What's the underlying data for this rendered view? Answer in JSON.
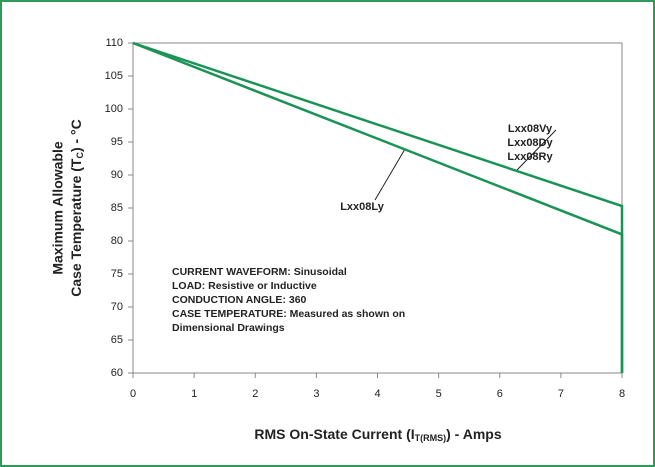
{
  "chart_data": {
    "type": "line",
    "xlabel": [
      "RMS On-State Current (I",
      "T(RMS)",
      ") - Amps"
    ],
    "ylabel": [
      "Maximum Allowable",
      "Case Temperature (T",
      "C",
      ") - °C"
    ],
    "annotations": [
      "CURRENT WAVEFORM: Sinusoidal",
      "LOAD: Resistive or Inductive",
      "CONDUCTION ANGLE: 360",
      "CASE TEMPERATURE: Measured as shown on",
      "Dimensional Drawings"
    ],
    "xlim": [
      0,
      8
    ],
    "xticks": [
      0,
      1,
      2,
      3,
      4,
      5,
      6,
      7,
      8
    ],
    "ylim": [
      60,
      110
    ],
    "yticks": [
      60,
      65,
      70,
      75,
      80,
      85,
      90,
      95,
      100,
      105,
      110
    ],
    "grid": false,
    "series": [
      {
        "name": [
          "Lxx08Vy",
          "Lxx08Dy",
          "Lxx08Ry"
        ],
        "color": "#1b9356",
        "x": [
          0,
          8,
          8
        ],
        "values": [
          110,
          85.3,
          60
        ]
      },
      {
        "name": "Lxx08Ly",
        "color": "#1b9356",
        "x": [
          0,
          8,
          8
        ],
        "values": [
          110,
          81,
          60
        ]
      }
    ]
  }
}
